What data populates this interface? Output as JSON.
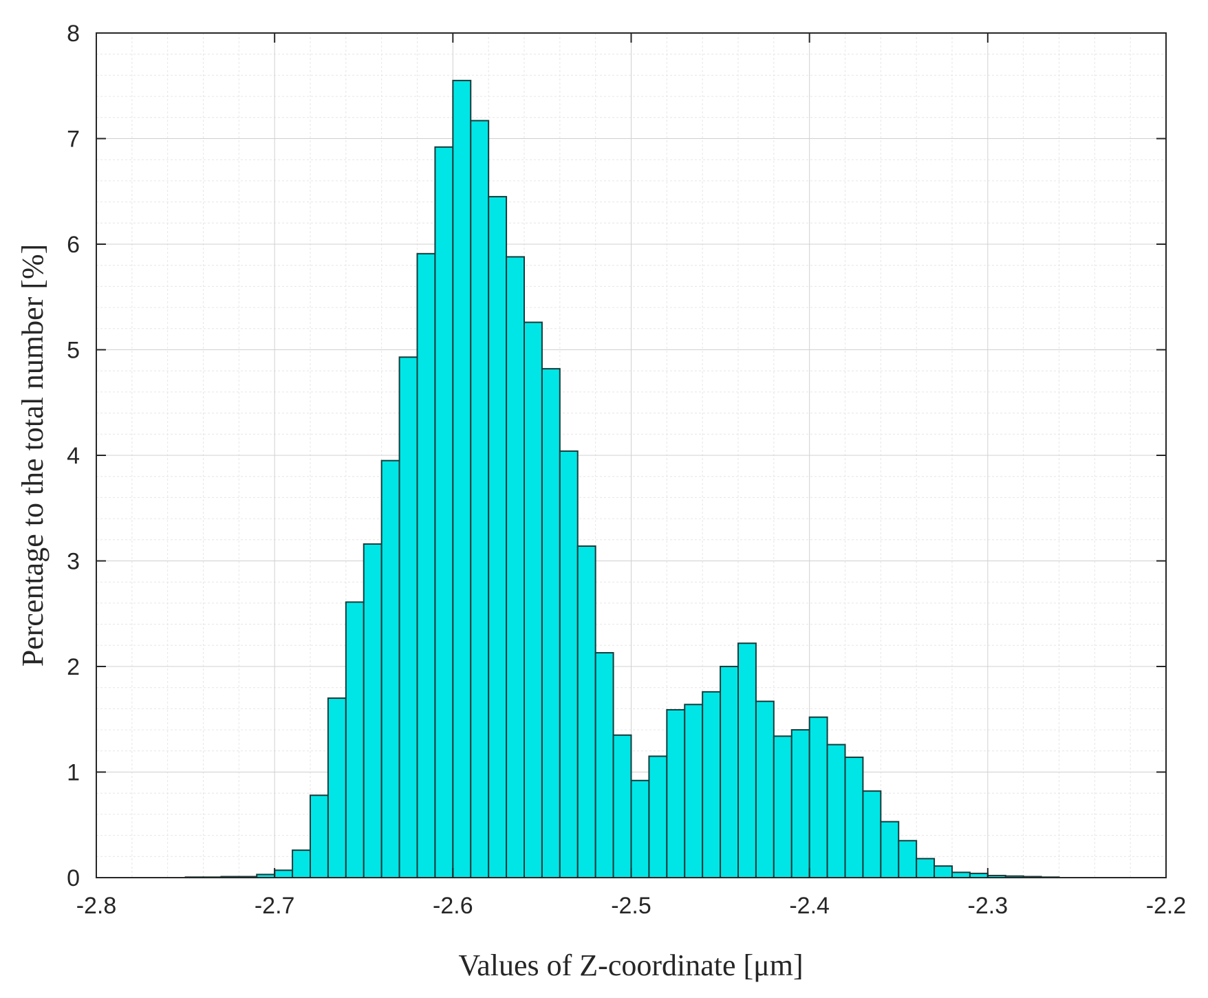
{
  "chart_data": {
    "type": "bar",
    "xlabel": "Values of Z-coordinate [μm]",
    "ylabel": "Percentage to the total number [%]",
    "xlim": [
      -2.8,
      -2.2
    ],
    "ylim": [
      0,
      8
    ],
    "grid": true,
    "minor_grid": true,
    "bin_width": 0.01,
    "x_ticks": [
      -2.8,
      -2.7,
      -2.6,
      -2.5,
      -2.4,
      -2.3,
      -2.2
    ],
    "x_tick_labels": [
      "-2.8",
      "-2.7",
      "-2.6",
      "-2.5",
      "-2.4",
      "-2.3",
      "-2.2"
    ],
    "y_ticks": [
      0,
      1,
      2,
      3,
      4,
      5,
      6,
      7,
      8
    ],
    "y_tick_labels": [
      "0",
      "1",
      "2",
      "3",
      "4",
      "5",
      "6",
      "7",
      "8"
    ],
    "bar_color": "#00E6E6",
    "bar_edge_color": "#1a3a3a",
    "bin_centers": [
      -2.745,
      -2.735,
      -2.725,
      -2.715,
      -2.705,
      -2.695,
      -2.685,
      -2.675,
      -2.665,
      -2.655,
      -2.645,
      -2.635,
      -2.625,
      -2.615,
      -2.605,
      -2.595,
      -2.585,
      -2.575,
      -2.565,
      -2.555,
      -2.545,
      -2.535,
      -2.525,
      -2.515,
      -2.505,
      -2.495,
      -2.485,
      -2.475,
      -2.465,
      -2.455,
      -2.445,
      -2.435,
      -2.425,
      -2.415,
      -2.405,
      -2.395,
      -2.385,
      -2.375,
      -2.365,
      -2.355,
      -2.345,
      -2.335,
      -2.325,
      -2.315,
      -2.305,
      -2.295,
      -2.285,
      -2.275,
      -2.265
    ],
    "values": [
      0.005,
      0.005,
      0.01,
      0.01,
      0.03,
      0.07,
      0.26,
      0.78,
      1.7,
      2.61,
      3.16,
      3.95,
      4.93,
      5.91,
      6.92,
      7.55,
      7.17,
      6.45,
      5.88,
      5.26,
      4.82,
      4.04,
      3.14,
      2.13,
      1.35,
      0.92,
      1.15,
      1.59,
      1.64,
      1.76,
      2.0,
      2.22,
      1.67,
      1.34,
      1.4,
      1.52,
      1.26,
      1.14,
      0.82,
      0.53,
      0.35,
      0.18,
      0.11,
      0.05,
      0.04,
      0.02,
      0.015,
      0.01,
      0.005
    ]
  }
}
